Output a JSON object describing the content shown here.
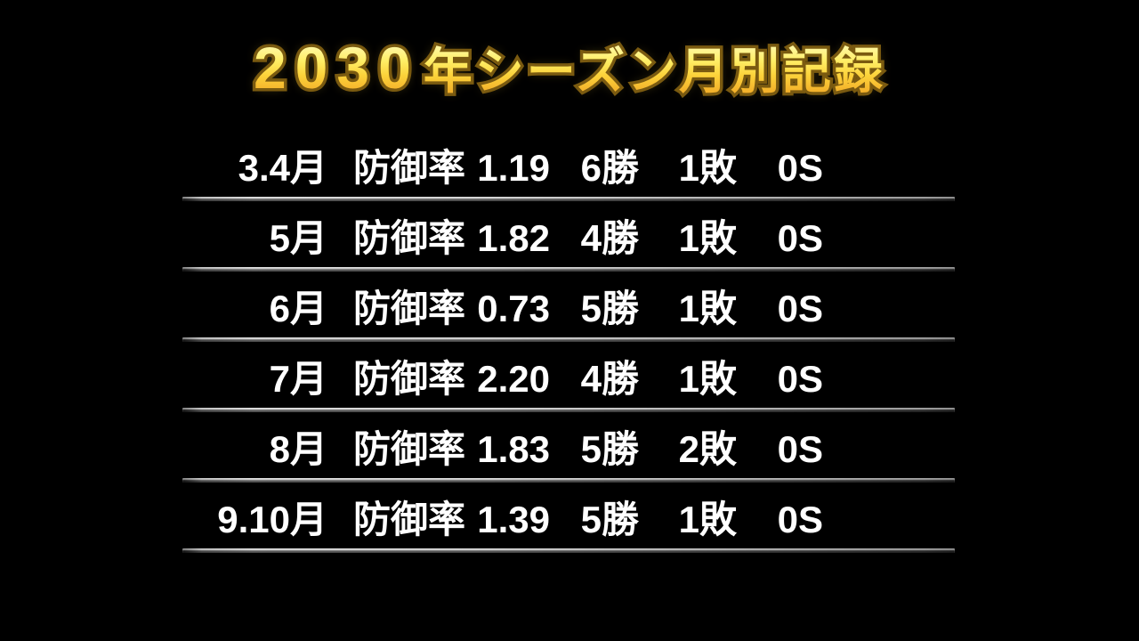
{
  "title": {
    "year": "2030",
    "suffix": "年シーズン月別記録"
  },
  "colors": {
    "background": "#000000",
    "title_gradient_top": "#fffdc8",
    "title_gradient_bottom": "#efa224",
    "title_outline": "#7a5a10",
    "row_text": "#ffffff",
    "divider_light": "#dcdcdc",
    "divider_dark": "#474747"
  },
  "table": {
    "era_label": "防御率",
    "rows": [
      {
        "month": "3.4月",
        "era_label": "防御率",
        "era": "1.19",
        "wins": "6勝",
        "losses": "1敗",
        "saves": "0S"
      },
      {
        "month": "5月",
        "era_label": "防御率",
        "era": "1.82",
        "wins": "4勝",
        "losses": "1敗",
        "saves": "0S"
      },
      {
        "month": "6月",
        "era_label": "防御率",
        "era": "0.73",
        "wins": "5勝",
        "losses": "1敗",
        "saves": "0S"
      },
      {
        "month": "7月",
        "era_label": "防御率",
        "era": "2.20",
        "wins": "4勝",
        "losses": "1敗",
        "saves": "0S"
      },
      {
        "month": "8月",
        "era_label": "防御率",
        "era": "1.83",
        "wins": "5勝",
        "losses": "2敗",
        "saves": "0S"
      },
      {
        "month": "9.10月",
        "era_label": "防御率",
        "era": "1.39",
        "wins": "5勝",
        "losses": "1敗",
        "saves": "0S"
      }
    ]
  }
}
